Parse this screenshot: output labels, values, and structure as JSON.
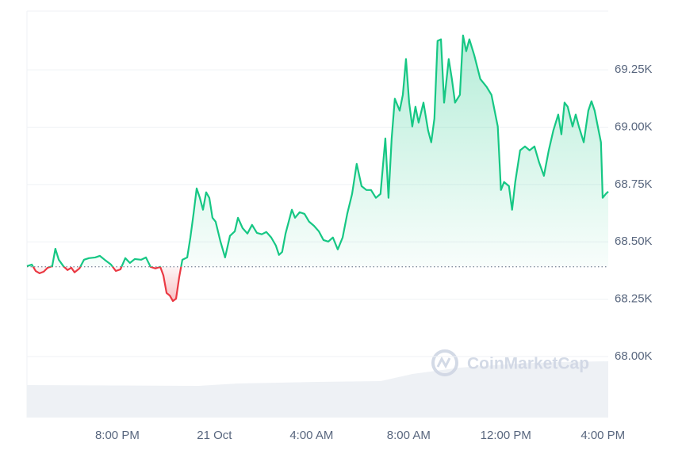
{
  "chart_data": {
    "type": "line",
    "color": "#16c784",
    "below_color": "#ea3943",
    "baseline": 68391,
    "watermark": "CoinMarketCap",
    "xlim": [
      16.28,
      40.22
    ],
    "xticks": [
      {
        "value": 20,
        "label": "8:00 PM"
      },
      {
        "value": 24,
        "label": "21 Oct"
      },
      {
        "value": 28,
        "label": "4:00 AM"
      },
      {
        "value": 32,
        "label": "8:00 AM"
      },
      {
        "value": 36,
        "label": "12:00 PM"
      },
      {
        "value": 40,
        "label": "4:00 PM"
      }
    ],
    "ylim": [
      67734,
      69506
    ],
    "yticks": [
      {
        "value": 68000,
        "label": "68.00K"
      },
      {
        "value": 68250,
        "label": "68.25K"
      },
      {
        "value": 68500,
        "label": "68.50K"
      },
      {
        "value": 68750,
        "label": "68.75K"
      },
      {
        "value": 69000,
        "label": "69.00K"
      },
      {
        "value": 69250,
        "label": "69.25K"
      }
    ],
    "grid": true,
    "x": [
      16.28,
      16.48,
      16.64,
      16.8,
      16.97,
      17.13,
      17.32,
      17.45,
      17.59,
      17.78,
      17.95,
      18.11,
      18.24,
      18.44,
      18.63,
      18.83,
      19.09,
      19.28,
      19.48,
      19.74,
      19.94,
      20.13,
      20.33,
      20.52,
      20.72,
      20.98,
      21.18,
      21.37,
      21.57,
      21.77,
      21.9,
      22.03,
      22.16,
      22.29,
      22.42,
      22.55,
      22.68,
      22.88,
      23.01,
      23.14,
      23.27,
      23.4,
      23.53,
      23.66,
      23.79,
      23.92,
      24.05,
      24.25,
      24.44,
      24.64,
      24.84,
      24.97,
      25.16,
      25.36,
      25.55,
      25.75,
      25.95,
      26.14,
      26.34,
      26.53,
      26.66,
      26.79,
      26.93,
      27.06,
      27.19,
      27.32,
      27.51,
      27.71,
      27.9,
      28.1,
      28.3,
      28.49,
      28.69,
      28.88,
      29.08,
      29.28,
      29.47,
      29.67,
      29.86,
      30.06,
      30.26,
      30.45,
      30.65,
      30.84,
      31.04,
      31.17,
      31.3,
      31.43,
      31.63,
      31.76,
      31.89,
      32.02,
      32.15,
      32.28,
      32.41,
      32.61,
      32.8,
      32.93,
      33.06,
      33.19,
      33.33,
      33.46,
      33.65,
      33.78,
      33.91,
      34.11,
      34.24,
      34.37,
      34.5,
      34.7,
      34.95,
      35.21,
      35.41,
      35.67,
      35.8,
      35.93,
      36.13,
      36.26,
      36.39,
      36.59,
      36.79,
      36.98,
      37.18,
      37.37,
      37.57,
      37.77,
      37.96,
      38.16,
      38.29,
      38.42,
      38.55,
      38.75,
      38.88,
      39.01,
      39.21,
      39.4,
      39.53,
      39.66,
      39.79,
      39.92,
      39.99,
      40.12,
      40.22
    ],
    "values": [
      68394,
      68401,
      68373,
      68363,
      68370,
      68387,
      68394,
      68470,
      68422,
      68394,
      68377,
      68387,
      68367,
      68384,
      68422,
      68429,
      68432,
      68439,
      68422,
      68401,
      68373,
      68380,
      68429,
      68408,
      68425,
      68422,
      68432,
      68391,
      68384,
      68391,
      68353,
      68277,
      68266,
      68242,
      68252,
      68346,
      68422,
      68432,
      68519,
      68622,
      68733,
      68692,
      68640,
      68716,
      68692,
      68605,
      68588,
      68501,
      68432,
      68526,
      68546,
      68605,
      68560,
      68536,
      68574,
      68539,
      68533,
      68543,
      68519,
      68484,
      68443,
      68456,
      68536,
      68588,
      68640,
      68605,
      68629,
      68622,
      68588,
      68570,
      68546,
      68508,
      68501,
      68519,
      68467,
      68519,
      68622,
      68709,
      68840,
      68743,
      68726,
      68726,
      68692,
      68709,
      68951,
      68692,
      68951,
      69124,
      69072,
      69141,
      69297,
      69107,
      69003,
      69089,
      69020,
      69107,
      68986,
      68934,
      69037,
      69376,
      69383,
      69107,
      69297,
      69210,
      69107,
      69141,
      69400,
      69331,
      69383,
      69314,
      69210,
      69176,
      69141,
      69003,
      68726,
      68761,
      68743,
      68640,
      68761,
      68899,
      68916,
      68899,
      68916,
      68847,
      68788,
      68899,
      68986,
      69055,
      68969,
      69107,
      69089,
      69003,
      69055,
      69003,
      68934,
      69072,
      69113,
      69072,
      69003,
      68934,
      68692,
      68709,
      68719
    ]
  }
}
